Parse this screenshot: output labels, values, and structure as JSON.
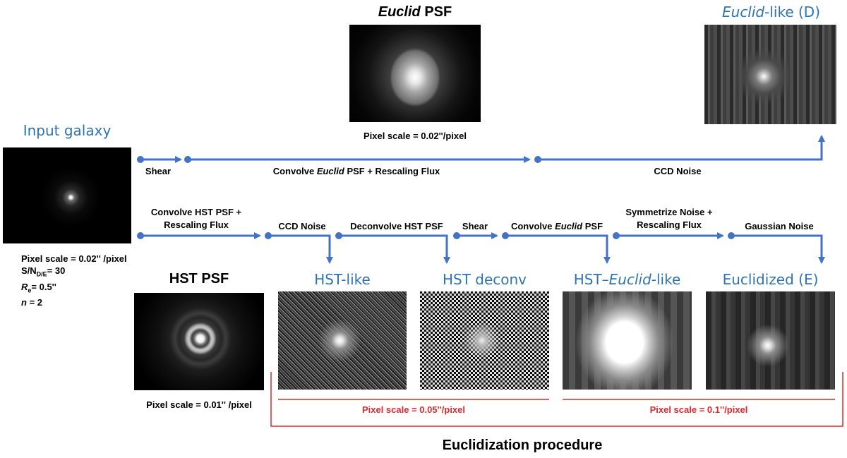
{
  "titles": {
    "input_galaxy": "Input galaxy",
    "euclid_psf": "PSF",
    "euclid_psf_italic": "Euclid",
    "euclid_like_italic": "Euclid",
    "euclid_like_rest": "-like (D)",
    "hst_psf": "HST PSF",
    "hst_like": "HST-like",
    "hst_deconv": "HST deconv",
    "hst_euclid_like_a": "HST–",
    "hst_euclid_like_b": "Euclid",
    "hst_euclid_like_c": "-like",
    "euclidized": "Euclidized (E)"
  },
  "pixel_scales": {
    "euclid_psf": "Pixel scale = 0.02''/pixel",
    "hst_psf": "Pixel scale = 0.01'' /pixel",
    "group_005": "Pixel scale = 0.05''/pixel",
    "group_01": "Pixel scale = 0.1''/pixel"
  },
  "input_info": {
    "line1": "Pixel scale = 0.02'' /pixel",
    "line2_a": "S/N",
    "line2_sub": "D/E",
    "line2_b": "= 30",
    "line3_a": "R",
    "line3_sub": "e",
    "line3_b": "= 0.5''",
    "line4_a": "n",
    "line4_b": " = 2"
  },
  "steps_top": {
    "shear": "Shear",
    "convolve_a": "Convolve ",
    "convolve_italic": "Euclid",
    "convolve_b": " PSF + Rescaling Flux",
    "ccd_noise": "CCD Noise"
  },
  "steps_bottom": {
    "convolve_hst_1": "Convolve HST PSF +",
    "convolve_hst_2": "Rescaling Flux",
    "ccd_noise": "CCD Noise",
    "deconvolve": "Deconvolve HST PSF",
    "shear": "Shear",
    "convolve_euclid_a": "Convolve ",
    "convolve_euclid_italic": "Euclid",
    "convolve_euclid_b": " PSF",
    "symmetrize_1": "Symmetrize Noise +",
    "symmetrize_2": "Rescaling Flux",
    "gaussian_noise": "Gaussian Noise"
  },
  "procedure_label": "Euclidization procedure",
  "colors": {
    "arrow_blue": "#4472c4",
    "title_blue": "#2e74b5",
    "bracket_red": "#e5262a"
  }
}
